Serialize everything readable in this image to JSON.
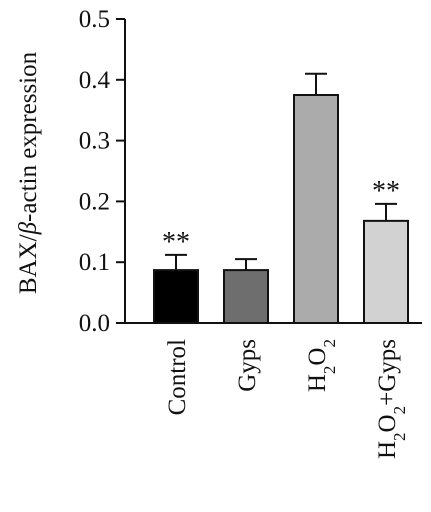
{
  "chart_data": {
    "type": "bar",
    "title": "",
    "xlabel": "",
    "ylabel": "BAX/β-actin expression",
    "ylabel_parts": {
      "before": "BAX/",
      "italic": "β",
      "after": "-actin expression"
    },
    "ylim": [
      0,
      0.5
    ],
    "yticks": [
      "0.0",
      "0.1",
      "0.2",
      "0.3",
      "0.4",
      "0.5"
    ],
    "categories": [
      "Control",
      "Gyps",
      "H2O2",
      "H2O2+Gyps"
    ],
    "category_labels": [
      [
        {
          "t": "Control",
          "sub": false
        }
      ],
      [
        {
          "t": "Gyps",
          "sub": false
        }
      ],
      [
        {
          "t": "H",
          "sub": false
        },
        {
          "t": "2",
          "sub": true
        },
        {
          "t": "O",
          "sub": false
        },
        {
          "t": "2",
          "sub": true
        }
      ],
      [
        {
          "t": "H",
          "sub": false
        },
        {
          "t": "2",
          "sub": true
        },
        {
          "t": "O",
          "sub": false
        },
        {
          "t": "2",
          "sub": true
        },
        {
          "t": "+Gyps",
          "sub": false
        }
      ]
    ],
    "values": [
      0.087,
      0.087,
      0.375,
      0.168
    ],
    "errors": [
      0.025,
      0.018,
      0.035,
      0.028
    ],
    "significance": [
      "**",
      "",
      "",
      "**"
    ],
    "colors": [
      "#000000",
      "#6e6e6e",
      "#ababab",
      "#d2d2d2"
    ],
    "grid": false,
    "legend": "none"
  }
}
